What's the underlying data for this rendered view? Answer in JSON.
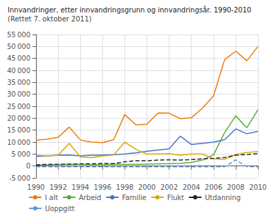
{
  "chart_data": {
    "type": "line",
    "title": "Innvandringer, etter innvandringsgrunn og innvandringsår. 1990-2010",
    "subtitle": "(Rettet 7. oktober 2011)",
    "x": [
      1990,
      1991,
      1992,
      1993,
      1994,
      1995,
      1996,
      1997,
      1998,
      1999,
      2000,
      2001,
      2002,
      2003,
      2004,
      2005,
      2006,
      2007,
      2008,
      2009,
      2010
    ],
    "series": [
      {
        "name": "I alt",
        "color": "#F07800",
        "line_style": "solid",
        "values": [
          10800,
          11200,
          12000,
          16300,
          10900,
          10000,
          9800,
          11000,
          21500,
          17200,
          17500,
          22200,
          22100,
          19800,
          20200,
          24200,
          29300,
          44500,
          48000,
          44000,
          50000
        ]
      },
      {
        "name": "Arbeid",
        "color": "#5AAA32",
        "line_style": "solid",
        "values": [
          400,
          500,
          600,
          700,
          700,
          600,
          600,
          700,
          700,
          700,
          800,
          900,
          1000,
          1100,
          1500,
          2500,
          4700,
          14000,
          21000,
          16000,
          23500
        ]
      },
      {
        "name": "Familie",
        "color": "#4472C4",
        "line_style": "solid",
        "values": [
          4000,
          4200,
          4500,
          4600,
          4200,
          4500,
          4600,
          4700,
          5000,
          5500,
          6200,
          6700,
          7200,
          12500,
          9000,
          9500,
          10000,
          11000,
          15500,
          13500,
          14500
        ]
      },
      {
        "name": "Flukt",
        "color": "#D4A800",
        "line_style": "solid",
        "values": [
          4500,
          4200,
          4500,
          9500,
          3800,
          3500,
          4200,
          4600,
          10000,
          7000,
          5000,
          5000,
          5200,
          4500,
          5000,
          5000,
          3000,
          2800,
          4800,
          5700,
          6000
        ]
      },
      {
        "name": "Utdanning",
        "color": "#222222",
        "line_style": "dashed",
        "values": [
          500,
          700,
          700,
          800,
          900,
          900,
          1100,
          1000,
          1800,
          2200,
          2200,
          2500,
          2600,
          2500,
          2700,
          3000,
          3200,
          3600,
          4500,
          4800,
          5200
        ]
      },
      {
        "name": "Uoppgitt",
        "color": "#6699DD",
        "line_style": "dashed",
        "values": [
          -300,
          -300,
          -300,
          -300,
          -300,
          -300,
          -300,
          -300,
          -300,
          -300,
          -300,
          -300,
          -300,
          -300,
          -300,
          -300,
          -300,
          -300,
          2600,
          -300,
          -300
        ]
      }
    ],
    "xlim": [
      1990,
      2010
    ],
    "xticks": [
      1990,
      1992,
      1994,
      1996,
      1998,
      2000,
      2002,
      2004,
      2006,
      2008,
      2010
    ],
    "ylim": [
      -5000,
      55000
    ],
    "yticks": [
      {
        "value": -5000,
        "label": "-5 000"
      },
      0,
      {
        "value": 5000,
        "label": "5 000"
      },
      {
        "value": 10000,
        "label": "10 000"
      },
      {
        "value": 15000,
        "label": "15 000"
      },
      {
        "value": 20000,
        "label": "20 000"
      },
      {
        "value": 25000,
        "label": "25 000"
      },
      {
        "value": 30000,
        "label": "30 000"
      },
      {
        "value": 35000,
        "label": "35 000"
      },
      {
        "value": 40000,
        "label": "40 000"
      },
      {
        "value": 45000,
        "label": "45 000"
      },
      {
        "value": 50000,
        "label": "50 000"
      },
      {
        "value": 55000,
        "label": "55 000"
      }
    ],
    "grid": true,
    "legend": "bottom"
  }
}
